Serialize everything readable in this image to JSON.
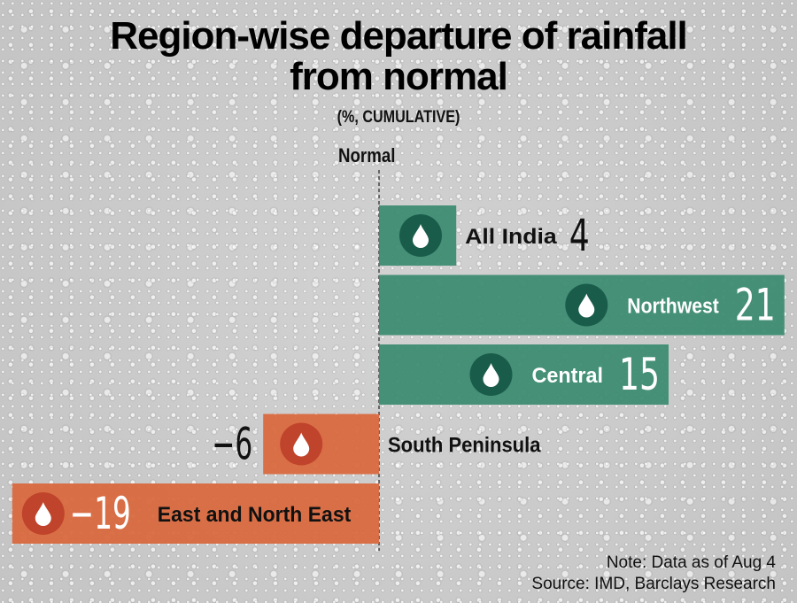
{
  "header": {
    "title_line1": "Region-wise departure of rainfall",
    "title_line2": "from normal",
    "subtitle": "(%, CUMULATIVE)"
  },
  "axis_label": "Normal",
  "colors": {
    "positive_bar": "#3d8c72",
    "positive_icon_circle": "#1a5c4a",
    "negative_bar": "#d9693f",
    "negative_icon_circle": "#c0432b",
    "icon_drop": "#ffffff"
  },
  "icons": {
    "bar_icon": "water-drop-icon"
  },
  "chart_data": {
    "type": "bar",
    "orientation": "horizontal",
    "title": "Region-wise departure of rainfall from normal",
    "subtitle": "(%, CUMULATIVE)",
    "baseline_label": "Normal",
    "xlabel": "",
    "ylabel": "",
    "xlim": [
      -19,
      21
    ],
    "unit": "%",
    "categories": [
      "All India",
      "Northwest",
      "Central",
      "South Peninsula",
      "East and North East"
    ],
    "values": [
      4,
      21,
      15,
      -6,
      -19
    ],
    "value_labels": [
      "4",
      "21",
      "15",
      "−6",
      "−19"
    ],
    "grid": false,
    "legend": "none"
  },
  "footer": {
    "note": "Note: Data as of Aug 4",
    "source": "Source: IMD, Barclays Research"
  }
}
